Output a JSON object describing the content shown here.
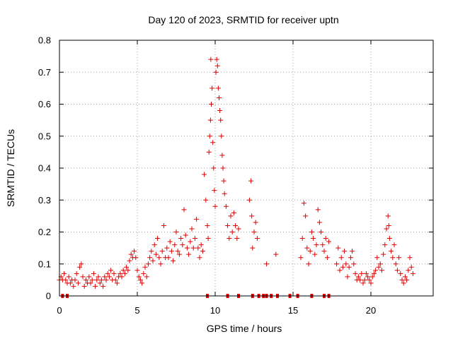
{
  "chart_data": {
    "type": "scatter",
    "title": "Day 120 of 2023, SRMTID for receiver uptn",
    "xlabel": "GPS time / hours",
    "ylabel": "SRMTID / TECUs",
    "xlim": [
      0,
      24
    ],
    "ylim": [
      0,
      0.8
    ],
    "xticks": [
      0,
      5,
      10,
      15,
      20
    ],
    "yticks": [
      0,
      0.1,
      0.2,
      0.3,
      0.4,
      0.5,
      0.6,
      0.7,
      0.8
    ],
    "xtick_labels": [
      "0",
      "5",
      "10",
      "15",
      "20"
    ],
    "ytick_labels": [
      "0",
      "0.1",
      "0.2",
      "0.3",
      "0.4",
      "0.5",
      "0.6",
      "0.7",
      "0.8"
    ],
    "grid": true,
    "marker": "+",
    "color": "#e00000",
    "series": [
      {
        "name": "SRMTID",
        "points": [
          [
            0.0,
            0.05
          ],
          [
            0.1,
            0.06
          ],
          [
            0.2,
            0.05
          ],
          [
            0.3,
            0.07
          ],
          [
            0.4,
            0.05
          ],
          [
            0.5,
            0.04
          ],
          [
            0.6,
            0.06
          ],
          [
            0.7,
            0.04
          ],
          [
            0.8,
            0.05
          ],
          [
            0.9,
            0.03
          ],
          [
            1.0,
            0.05
          ],
          [
            1.1,
            0.07
          ],
          [
            1.2,
            0.04
          ],
          [
            1.3,
            0.09
          ],
          [
            1.4,
            0.1
          ],
          [
            1.5,
            0.06
          ],
          [
            1.6,
            0.03
          ],
          [
            1.7,
            0.05
          ],
          [
            1.8,
            0.04
          ],
          [
            1.9,
            0.06
          ],
          [
            2.0,
            0.04
          ],
          [
            2.1,
            0.05
          ],
          [
            2.2,
            0.07
          ],
          [
            2.3,
            0.03
          ],
          [
            2.4,
            0.05
          ],
          [
            2.5,
            0.06
          ],
          [
            2.6,
            0.04
          ],
          [
            2.7,
            0.05
          ],
          [
            2.8,
            0.03
          ],
          [
            2.9,
            0.06
          ],
          [
            3.0,
            0.05
          ],
          [
            3.1,
            0.07
          ],
          [
            3.2,
            0.06
          ],
          [
            3.3,
            0.08
          ],
          [
            3.4,
            0.05
          ],
          [
            3.5,
            0.07
          ],
          [
            3.6,
            0.05
          ],
          [
            3.7,
            0.04
          ],
          [
            3.8,
            0.06
          ],
          [
            3.9,
            0.07
          ],
          [
            4.0,
            0.06
          ],
          [
            4.1,
            0.08
          ],
          [
            4.2,
            0.07
          ],
          [
            4.3,
            0.09
          ],
          [
            4.4,
            0.08
          ],
          [
            4.5,
            0.11
          ],
          [
            4.6,
            0.13
          ],
          [
            4.7,
            0.12
          ],
          [
            4.8,
            0.14
          ],
          [
            4.9,
            0.12
          ],
          [
            5.0,
            0.08
          ],
          [
            5.1,
            0.06
          ],
          [
            5.2,
            0.05
          ],
          [
            5.3,
            0.04
          ],
          [
            5.4,
            0.07
          ],
          [
            5.5,
            0.09
          ],
          [
            5.6,
            0.06
          ],
          [
            5.7,
            0.1
          ],
          [
            5.8,
            0.12
          ],
          [
            5.9,
            0.14
          ],
          [
            6.0,
            0.11
          ],
          [
            6.1,
            0.16
          ],
          [
            6.2,
            0.13
          ],
          [
            6.3,
            0.18
          ],
          [
            6.4,
            0.12
          ],
          [
            6.5,
            0.1
          ],
          [
            6.6,
            0.14
          ],
          [
            6.7,
            0.22
          ],
          [
            6.8,
            0.12
          ],
          [
            6.9,
            0.15
          ],
          [
            7.0,
            0.12
          ],
          [
            7.1,
            0.17
          ],
          [
            7.2,
            0.14
          ],
          [
            7.3,
            0.11
          ],
          [
            7.4,
            0.16
          ],
          [
            7.5,
            0.2
          ],
          [
            7.6,
            0.14
          ],
          [
            7.7,
            0.13
          ],
          [
            7.8,
            0.18
          ],
          [
            7.9,
            0.16
          ],
          [
            8.0,
            0.27
          ],
          [
            8.1,
            0.19
          ],
          [
            8.2,
            0.15
          ],
          [
            8.3,
            0.13
          ],
          [
            8.4,
            0.17
          ],
          [
            8.5,
            0.21
          ],
          [
            8.6,
            0.15
          ],
          [
            8.7,
            0.18
          ],
          [
            8.8,
            0.24
          ],
          [
            8.9,
            0.15
          ],
          [
            9.0,
            0.12
          ],
          [
            9.1,
            0.16
          ],
          [
            9.2,
            0.14
          ],
          [
            9.3,
            0.38
          ],
          [
            9.4,
            0.3
          ],
          [
            9.5,
            0.22
          ],
          [
            9.55,
            0.18
          ],
          [
            9.6,
            0.45
          ],
          [
            9.65,
            0.5
          ],
          [
            9.7,
            0.55
          ],
          [
            9.72,
            0.74
          ],
          [
            9.75,
            0.6
          ],
          [
            9.8,
            0.65
          ],
          [
            9.85,
            0.48
          ],
          [
            9.9,
            0.4
          ],
          [
            9.95,
            0.33
          ],
          [
            10.0,
            0.28
          ],
          [
            10.05,
            0.7
          ],
          [
            10.1,
            0.74
          ],
          [
            10.15,
            0.72
          ],
          [
            10.2,
            0.65
          ],
          [
            10.25,
            0.62
          ],
          [
            10.3,
            0.58
          ],
          [
            10.35,
            0.55
          ],
          [
            10.4,
            0.5
          ],
          [
            10.45,
            0.44
          ],
          [
            10.5,
            0.4
          ],
          [
            10.55,
            0.36
          ],
          [
            10.6,
            0.32
          ],
          [
            10.7,
            0.28
          ],
          [
            10.8,
            0.22
          ],
          [
            10.9,
            0.18
          ],
          [
            11.0,
            0.25
          ],
          [
            11.1,
            0.2
          ],
          [
            11.2,
            0.26
          ],
          [
            11.3,
            0.22
          ],
          [
            11.4,
            0.18
          ],
          [
            11.5,
            0.21
          ],
          [
            12.2,
            0.3
          ],
          [
            12.3,
            0.36
          ],
          [
            12.35,
            0.25
          ],
          [
            12.4,
            0.15
          ],
          [
            12.5,
            0.2
          ],
          [
            12.6,
            0.23
          ],
          [
            12.7,
            0.18
          ],
          [
            13.3,
            0.1
          ],
          [
            13.9,
            0.13
          ],
          [
            15.5,
            0.12
          ],
          [
            15.6,
            0.18
          ],
          [
            15.7,
            0.29
          ],
          [
            15.8,
            0.25
          ],
          [
            15.9,
            0.15
          ],
          [
            16.0,
            0.1
          ],
          [
            16.1,
            0.14
          ],
          [
            16.2,
            0.2
          ],
          [
            16.3,
            0.18
          ],
          [
            16.4,
            0.13
          ],
          [
            16.5,
            0.16
          ],
          [
            16.6,
            0.27
          ],
          [
            16.7,
            0.23
          ],
          [
            16.8,
            0.2
          ],
          [
            16.9,
            0.16
          ],
          [
            17.0,
            0.14
          ],
          [
            17.1,
            0.18
          ],
          [
            17.2,
            0.12
          ],
          [
            17.3,
            0.17
          ],
          [
            17.8,
            0.1
          ],
          [
            17.9,
            0.15
          ],
          [
            18.0,
            0.08
          ],
          [
            18.1,
            0.12
          ],
          [
            18.2,
            0.09
          ],
          [
            18.3,
            0.14
          ],
          [
            18.4,
            0.1
          ],
          [
            18.5,
            0.06
          ],
          [
            18.6,
            0.09
          ],
          [
            18.7,
            0.12
          ],
          [
            18.8,
            0.14
          ],
          [
            18.9,
            0.1
          ],
          [
            19.0,
            0.07
          ],
          [
            19.1,
            0.05
          ],
          [
            19.2,
            0.06
          ],
          [
            19.3,
            0.05
          ],
          [
            19.4,
            0.07
          ],
          [
            19.5,
            0.04
          ],
          [
            19.6,
            0.05
          ],
          [
            19.7,
            0.07
          ],
          [
            19.8,
            0.06
          ],
          [
            19.9,
            0.05
          ],
          [
            20.0,
            0.04
          ],
          [
            20.1,
            0.06
          ],
          [
            20.2,
            0.07
          ],
          [
            20.3,
            0.08
          ],
          [
            20.4,
            0.12
          ],
          [
            20.5,
            0.09
          ],
          [
            20.6,
            0.1
          ],
          [
            20.7,
            0.08
          ],
          [
            20.8,
            0.13
          ],
          [
            20.9,
            0.16
          ],
          [
            21.0,
            0.21
          ],
          [
            21.1,
            0.25
          ],
          [
            21.15,
            0.22
          ],
          [
            21.2,
            0.18
          ],
          [
            21.3,
            0.14
          ],
          [
            21.4,
            0.12
          ],
          [
            21.5,
            0.16
          ],
          [
            21.6,
            0.1
          ],
          [
            21.7,
            0.08
          ],
          [
            21.8,
            0.12
          ],
          [
            21.9,
            0.07
          ],
          [
            22.0,
            0.05
          ],
          [
            22.1,
            0.04
          ],
          [
            22.2,
            0.06
          ],
          [
            22.3,
            0.05
          ],
          [
            22.4,
            0.08
          ],
          [
            22.5,
            0.12
          ],
          [
            22.6,
            0.09
          ],
          [
            22.7,
            0.07
          ]
        ],
        "zero_markers": [
          0.2,
          0.5,
          9.5,
          10.8,
          11.5,
          12.4,
          12.8,
          13.1,
          13.3,
          13.6,
          14.0,
          14.8,
          15.3,
          16.2,
          17.0,
          17.3
        ]
      }
    ]
  }
}
